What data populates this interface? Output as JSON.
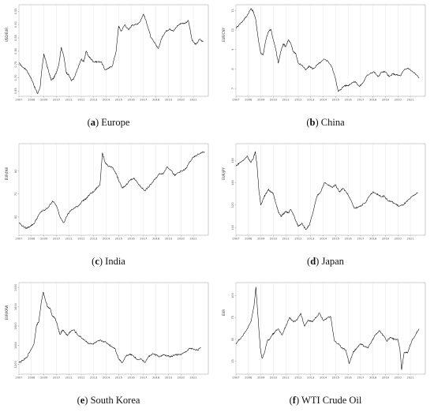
{
  "figure": {
    "panels": [
      {
        "letter": "a",
        "name": "Europe"
      },
      {
        "letter": "b",
        "name": "China"
      },
      {
        "letter": "c",
        "name": "India"
      },
      {
        "letter": "d",
        "name": "Japan"
      },
      {
        "letter": "e",
        "name": "South Korea"
      },
      {
        "letter": "f",
        "name": "WTI Crude Oil"
      }
    ]
  },
  "chart_data": [
    {
      "type": "line",
      "title": "",
      "xlabel": "",
      "ylabel": "USD/EUR",
      "x_ticks": [
        "2007",
        "2008",
        "2009",
        "2010",
        "2011",
        "2012",
        "2013",
        "2014",
        "2015",
        "2016",
        "2017",
        "2018",
        "2019",
        "2020",
        "2021"
      ],
      "y_ticks": [
        "0.65",
        "0.70",
        "0.75",
        "0.80",
        "0.85",
        "0.90",
        "0.95"
      ],
      "xlim": [
        2007.0,
        2022.2
      ],
      "ylim": [
        0.63,
        0.975
      ],
      "grid": true,
      "color": "#000000",
      "x": [
        2007.0,
        2007.3,
        2007.6,
        2007.9,
        2008.1,
        2008.3,
        2008.5,
        2008.7,
        2008.85,
        2009.0,
        2009.2,
        2009.4,
        2009.6,
        2009.8,
        2010.0,
        2010.2,
        2010.4,
        2010.6,
        2010.8,
        2011.0,
        2011.2,
        2011.4,
        2011.6,
        2011.8,
        2012.0,
        2012.2,
        2012.4,
        2012.6,
        2012.8,
        2013.0,
        2013.3,
        2013.6,
        2013.9,
        2014.2,
        2014.5,
        2014.8,
        2015.0,
        2015.2,
        2015.5,
        2015.8,
        2016.1,
        2016.4,
        2016.7,
        2017.0,
        2017.3,
        2017.6,
        2017.9,
        2018.2,
        2018.5,
        2018.8,
        2019.1,
        2019.4,
        2019.7,
        2020.0,
        2020.3,
        2020.6,
        2020.9,
        2021.2,
        2021.5,
        2021.8
      ],
      "values": [
        0.755,
        0.74,
        0.73,
        0.705,
        0.685,
        0.66,
        0.64,
        0.665,
        0.735,
        0.79,
        0.755,
        0.72,
        0.69,
        0.7,
        0.72,
        0.75,
        0.815,
        0.78,
        0.72,
        0.71,
        0.69,
        0.695,
        0.72,
        0.745,
        0.77,
        0.76,
        0.8,
        0.78,
        0.77,
        0.76,
        0.76,
        0.76,
        0.73,
        0.735,
        0.745,
        0.8,
        0.895,
        0.875,
        0.9,
        0.88,
        0.9,
        0.9,
        0.91,
        0.94,
        0.9,
        0.85,
        0.83,
        0.81,
        0.855,
        0.875,
        0.885,
        0.875,
        0.895,
        0.905,
        0.905,
        0.915,
        0.84,
        0.825,
        0.845,
        0.835
      ]
    },
    {
      "type": "line",
      "title": "",
      "xlabel": "",
      "ylabel": "EUR/CNY",
      "x_ticks": [
        "2007",
        "2008",
        "2009",
        "2010",
        "2011",
        "2012",
        "2013",
        "2014",
        "2015",
        "2016",
        "2017",
        "2018",
        "2019",
        "2020",
        "2021"
      ],
      "y_ticks": [
        "7",
        "8",
        "9",
        "10",
        "11"
      ],
      "xlim": [
        2007.0,
        2022.2
      ],
      "ylim": [
        6.6,
        11.3
      ],
      "grid": true,
      "color": "#000000",
      "x": [
        2007.0,
        2007.3,
        2007.6,
        2007.9,
        2008.2,
        2008.4,
        2008.6,
        2008.8,
        2009.0,
        2009.2,
        2009.4,
        2009.6,
        2009.8,
        2010.0,
        2010.2,
        2010.4,
        2010.6,
        2010.8,
        2011.0,
        2011.2,
        2011.4,
        2011.6,
        2011.8,
        2012.0,
        2012.3,
        2012.6,
        2012.9,
        2013.2,
        2013.5,
        2013.8,
        2014.1,
        2014.4,
        2014.7,
        2015.0,
        2015.2,
        2015.4,
        2015.7,
        2016.0,
        2016.3,
        2016.6,
        2016.9,
        2017.2,
        2017.5,
        2017.8,
        2018.1,
        2018.4,
        2018.7,
        2019.0,
        2019.3,
        2019.6,
        2019.9,
        2020.2,
        2020.5,
        2020.8,
        2021.1,
        2021.4,
        2021.7
      ],
      "values": [
        10.1,
        10.3,
        10.5,
        10.75,
        11.1,
        10.95,
        10.5,
        9.5,
        8.8,
        8.75,
        9.5,
        9.9,
        10.05,
        9.5,
        9.0,
        8.3,
        8.9,
        9.3,
        9.15,
        9.5,
        9.3,
        8.9,
        8.8,
        8.3,
        8.2,
        7.95,
        8.15,
        8.0,
        8.2,
        8.35,
        8.5,
        8.4,
        8.1,
        7.5,
        6.85,
        6.95,
        7.15,
        7.15,
        7.3,
        7.35,
        7.1,
        7.3,
        7.65,
        7.8,
        7.85,
        7.6,
        7.85,
        7.85,
        7.6,
        7.75,
        7.7,
        7.65,
        7.95,
        8.05,
        7.9,
        7.75,
        7.55
      ]
    },
    {
      "type": "line",
      "title": "",
      "xlabel": "",
      "ylabel": "EUR/INR",
      "x_ticks": [
        "2007",
        "2008",
        "2009",
        "2010",
        "2011",
        "2012",
        "2013",
        "2014",
        "2015",
        "2016",
        "2017",
        "2018",
        "2019",
        "2020",
        "2021"
      ],
      "y_ticks": [
        "60",
        "70",
        "80"
      ],
      "xlim": [
        2007.0,
        2022.2
      ],
      "ylim": [
        52.0,
        92.0
      ],
      "grid": true,
      "color": "#000000",
      "x": [
        2007.0,
        2007.3,
        2007.6,
        2007.9,
        2008.2,
        2008.5,
        2008.8,
        2009.1,
        2009.4,
        2009.7,
        2010.0,
        2010.3,
        2010.6,
        2010.9,
        2011.2,
        2011.5,
        2011.8,
        2012.1,
        2012.4,
        2012.7,
        2013.0,
        2013.3,
        2013.5,
        2013.7,
        2013.9,
        2014.2,
        2014.5,
        2014.8,
        2015.0,
        2015.3,
        2015.6,
        2015.9,
        2016.2,
        2016.5,
        2016.8,
        2017.1,
        2017.4,
        2017.7,
        2018.0,
        2018.3,
        2018.6,
        2018.9,
        2019.2,
        2019.5,
        2019.8,
        2020.1,
        2020.4,
        2020.7,
        2021.0,
        2021.3,
        2021.6,
        2021.9
      ],
      "values": [
        57.5,
        56.0,
        55.0,
        56.0,
        57.0,
        60.0,
        62.5,
        63.0,
        64.5,
        67.0,
        65.0,
        60.0,
        57.5,
        61.0,
        63.0,
        64.0,
        65.0,
        67.0,
        68.0,
        70.0,
        71.0,
        73.0,
        74.0,
        88.0,
        84.0,
        82.0,
        81.5,
        79.0,
        76.0,
        72.5,
        74.0,
        76.0,
        77.0,
        75.0,
        73.0,
        71.5,
        73.0,
        75.0,
        77.0,
        79.0,
        79.0,
        82.0,
        80.5,
        78.0,
        79.5,
        80.0,
        81.0,
        84.0,
        86.0,
        87.0,
        88.0,
        88.5
      ]
    },
    {
      "type": "line",
      "title": "",
      "xlabel": "",
      "ylabel": "EUR/JPY",
      "x_ticks": [
        "2007",
        "2008",
        "2009",
        "2010",
        "2011",
        "2012",
        "2013",
        "2014",
        "2015",
        "2016",
        "2017",
        "2018",
        "2019",
        "2020",
        "2021"
      ],
      "y_ticks": [
        "100",
        "120",
        "140",
        "160"
      ],
      "xlim": [
        2007.0,
        2022.2
      ],
      "ylim": [
        93.0,
        175.0
      ],
      "grid": true,
      "color": "#000000",
      "x": [
        2007.0,
        2007.3,
        2007.6,
        2007.9,
        2008.2,
        2008.4,
        2008.55,
        2008.7,
        2008.85,
        2009.0,
        2009.2,
        2009.4,
        2009.6,
        2009.8,
        2010.0,
        2010.2,
        2010.4,
        2010.6,
        2010.8,
        2011.0,
        2011.2,
        2011.4,
        2011.6,
        2011.8,
        2012.0,
        2012.3,
        2012.6,
        2012.9,
        2013.2,
        2013.5,
        2013.8,
        2014.1,
        2014.4,
        2014.7,
        2015.0,
        2015.3,
        2015.6,
        2015.9,
        2016.2,
        2016.5,
        2016.8,
        2017.1,
        2017.4,
        2017.7,
        2018.0,
        2018.3,
        2018.6,
        2018.9,
        2019.2,
        2019.5,
        2019.8,
        2020.1,
        2020.4,
        2020.7,
        2021.0,
        2021.3,
        2021.6
      ],
      "values": [
        155.0,
        158.0,
        160.0,
        164.0,
        158.0,
        162.0,
        168.0,
        155.0,
        132.0,
        120.0,
        126.0,
        130.0,
        134.0,
        132.0,
        130.0,
        122.0,
        114.0,
        110.0,
        112.0,
        114.0,
        113.0,
        116.0,
        112.0,
        106.0,
        101.0,
        104.0,
        98.0,
        102.0,
        114.0,
        128.0,
        132.0,
        140.0,
        138.0,
        136.0,
        138.0,
        132.0,
        135.0,
        131.0,
        125.0,
        117.0,
        118.0,
        120.0,
        122.0,
        128.0,
        132.0,
        130.0,
        128.0,
        128.0,
        124.0,
        123.0,
        121.0,
        119.0,
        120.0,
        123.0,
        126.0,
        129.0,
        131.0
      ]
    },
    {
      "type": "line",
      "title": "",
      "xlabel": "",
      "ylabel": "EUR/KRW",
      "x_ticks": [
        "2007",
        "2008",
        "2009",
        "2010",
        "2011",
        "2012",
        "2013",
        "2014",
        "2015",
        "2016",
        "2017",
        "2018",
        "2019",
        "2020",
        "2021"
      ],
      "y_ticks": [
        "1200",
        "1400",
        "1600",
        "1800",
        "2000"
      ],
      "xlim": [
        2007.0,
        2022.2
      ],
      "ylim": [
        1100.0,
        2050.0
      ],
      "grid": true,
      "color": "#000000",
      "x": [
        2007.0,
        2007.3,
        2007.6,
        2007.9,
        2008.2,
        2008.4,
        2008.6,
        2008.8,
        2008.95,
        2009.1,
        2009.3,
        2009.5,
        2009.7,
        2009.9,
        2010.1,
        2010.3,
        2010.5,
        2010.7,
        2010.9,
        2011.1,
        2011.4,
        2011.7,
        2012.0,
        2012.3,
        2012.6,
        2012.9,
        2013.2,
        2013.5,
        2013.8,
        2014.1,
        2014.4,
        2014.7,
        2015.0,
        2015.3,
        2015.6,
        2015.9,
        2016.2,
        2016.5,
        2016.8,
        2017.1,
        2017.4,
        2017.7,
        2018.0,
        2018.3,
        2018.6,
        2018.9,
        2019.2,
        2019.5,
        2019.8,
        2020.1,
        2020.4,
        2020.7,
        2021.0,
        2021.3,
        2021.6
      ],
      "values": [
        1220.0,
        1240.0,
        1270.0,
        1340.0,
        1410.0,
        1600.0,
        1650.0,
        1850.0,
        1950.0,
        1880.0,
        1800.0,
        1780.0,
        1700.0,
        1680.0,
        1600.0,
        1510.0,
        1560.0,
        1530.0,
        1500.0,
        1540.0,
        1560.0,
        1510.0,
        1480.0,
        1450.0,
        1420.0,
        1410.0,
        1430.0,
        1450.0,
        1440.0,
        1420.0,
        1390.0,
        1370.0,
        1260.0,
        1220.0,
        1290.0,
        1310.0,
        1290.0,
        1250.0,
        1260.0,
        1220.0,
        1280.0,
        1310.0,
        1300.0,
        1280.0,
        1300.0,
        1290.0,
        1280.0,
        1300.0,
        1300.0,
        1310.0,
        1330.0,
        1370.0,
        1360.0,
        1350.0,
        1370.0
      ]
    },
    {
      "type": "line",
      "title": "",
      "xlabel": "",
      "ylabel": "EUR",
      "x_ticks": [
        "2007",
        "2008",
        "2009",
        "2010",
        "2011",
        "2012",
        "2013",
        "2014",
        "2015",
        "2016",
        "2017",
        "2018",
        "2019",
        "2020",
        "2021"
      ],
      "y_ticks": [
        "25",
        "50",
        "75",
        "100"
      ],
      "xlim": [
        2007.0,
        2022.2
      ],
      "ylim": [
        10.0,
        115.0
      ],
      "grid": true,
      "color": "#000000",
      "x": [
        2007.0,
        2007.3,
        2007.6,
        2007.9,
        2008.2,
        2008.45,
        2008.6,
        2008.75,
        2008.95,
        2009.1,
        2009.3,
        2009.5,
        2009.7,
        2009.9,
        2010.1,
        2010.4,
        2010.7,
        2011.0,
        2011.3,
        2011.6,
        2011.9,
        2012.2,
        2012.5,
        2012.8,
        2013.1,
        2013.4,
        2013.7,
        2014.0,
        2014.3,
        2014.6,
        2014.9,
        2015.2,
        2015.5,
        2015.8,
        2016.1,
        2016.4,
        2016.7,
        2017.0,
        2017.3,
        2017.6,
        2017.9,
        2018.2,
        2018.5,
        2018.8,
        2019.1,
        2019.4,
        2019.7,
        2020.0,
        2020.15,
        2020.3,
        2020.5,
        2020.8,
        2021.1,
        2021.4,
        2021.7
      ],
      "values": [
        45.0,
        50.0,
        55.0,
        62.0,
        70.0,
        88.0,
        110.0,
        80.0,
        40.0,
        28.0,
        35.0,
        48.0,
        50.0,
        55.0,
        58.0,
        62.0,
        55.0,
        65.0,
        75.0,
        70.0,
        72.0,
        80.0,
        65.0,
        72.0,
        70.0,
        75.0,
        80.0,
        72.0,
        74.0,
        76.0,
        48.0,
        45.0,
        40.0,
        38.0,
        22.0,
        35.0,
        40.0,
        45.0,
        42.0,
        40.0,
        48.0,
        55.0,
        60.0,
        55.0,
        48.0,
        52.0,
        50.0,
        50.0,
        40.0,
        15.0,
        35.0,
        35.0,
        48.0,
        55.0,
        62.0
      ]
    }
  ]
}
